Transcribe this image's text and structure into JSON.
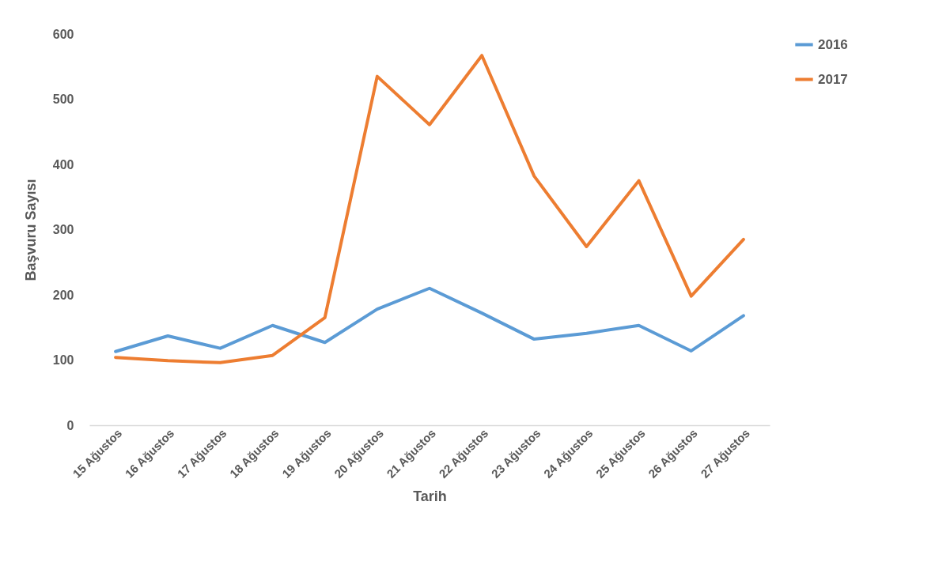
{
  "chart_data": {
    "type": "line",
    "xlabel": "Tarih",
    "ylabel": "Başvuru Sayısı",
    "categories": [
      "15 Ağustos",
      "16 Ağustos",
      "17 Ağustos",
      "18 Ağustos",
      "19 Ağustos",
      "20 Ağustos",
      "21 Ağustos",
      "22 Ağustos",
      "23 Ağustos",
      "24 Ağustos",
      "25 Ağustos",
      "26 Ağustos",
      "27 Ağustos"
    ],
    "series": [
      {
        "name": "2016",
        "color": "#5b9bd5",
        "values": [
          113,
          137,
          118,
          153,
          127,
          178,
          210,
          172,
          132,
          141,
          153,
          114,
          168
        ]
      },
      {
        "name": "2017",
        "color": "#ed7d31",
        "values": [
          104,
          99,
          96,
          107,
          165,
          535,
          461,
          567,
          382,
          274,
          375,
          198,
          285
        ]
      }
    ],
    "ylim": [
      0,
      600
    ],
    "yticks": [
      0,
      100,
      200,
      300,
      400,
      500,
      600
    ],
    "grid": false,
    "legend": "right",
    "marker": "none",
    "line_style": "solid"
  }
}
